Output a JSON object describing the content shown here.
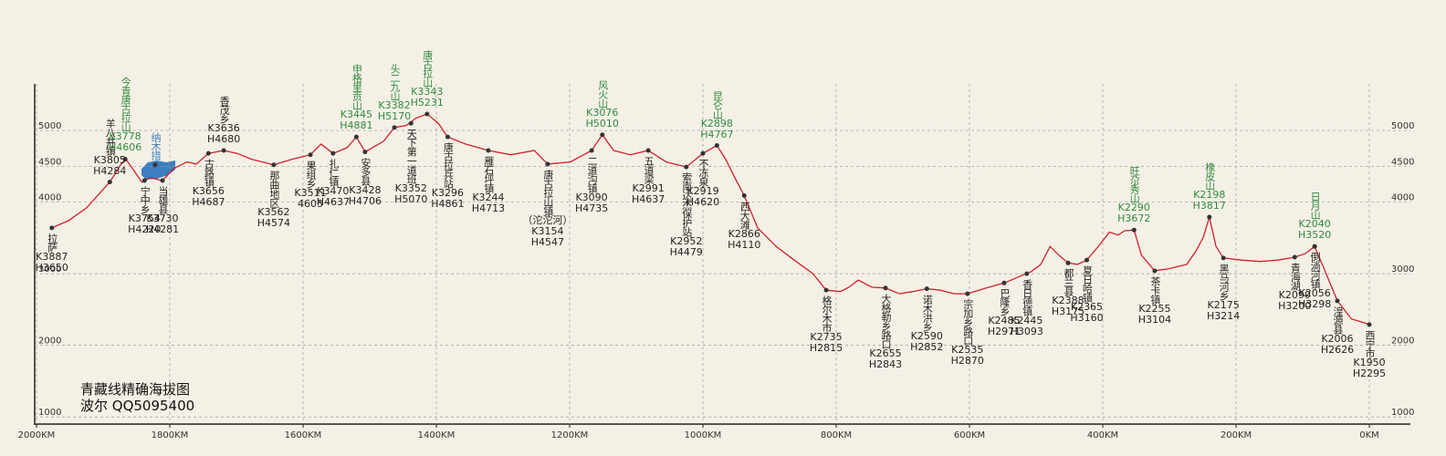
{
  "chart_data": {
    "type": "line",
    "title": "青藏线精确海拔图",
    "subtitle": "波尔 QQ5095400",
    "color": "#d0202a",
    "x": [
      1977,
      1952,
      1925,
      1890,
      1873,
      1866,
      1856,
      1842,
      1829,
      1811,
      1794,
      1774,
      1760,
      1742,
      1719,
      1699,
      1678,
      1644,
      1616,
      1589,
      1573,
      1555,
      1534,
      1520,
      1507,
      1479,
      1463,
      1445,
      1431,
      1414,
      1397,
      1383,
      1356,
      1322,
      1288,
      1253,
      1233,
      1199,
      1167,
      1151,
      1134,
      1109,
      1082,
      1055,
      1025,
      1000,
      979,
      966,
      952,
      938,
      918,
      890,
      863,
      835,
      815,
      794,
      781,
      767,
      746,
      726,
      705,
      685,
      664,
      644,
      623,
      603,
      575,
      548,
      520,
      507,
      493,
      479,
      466,
      452,
      438,
      424,
      404,
      390,
      377,
      367,
      353,
      342,
      322,
      301,
      274,
      260,
      249,
      240,
      230,
      219,
      192,
      164,
      137,
      112,
      96,
      82,
      68,
      48,
      27,
      0
    ],
    "values": [
      3640,
      3740,
      3920,
      4280,
      4530,
      4600,
      4470,
      4280,
      4340,
      4300,
      4470,
      4560,
      4530,
      4680,
      4720,
      4680,
      4600,
      4520,
      4600,
      4660,
      4810,
      4680,
      4760,
      4910,
      4700,
      4850,
      5040,
      5070,
      5170,
      5230,
      5100,
      4910,
      4810,
      4720,
      4660,
      4720,
      4530,
      4560,
      4720,
      4940,
      4720,
      4660,
      4720,
      4560,
      4490,
      4680,
      4790,
      4600,
      4340,
      4090,
      3640,
      3380,
      3190,
      3000,
      2770,
      2750,
      2810,
      2910,
      2810,
      2800,
      2720,
      2750,
      2790,
      2770,
      2720,
      2720,
      2800,
      2870,
      2980,
      3030,
      3130,
      3380,
      3260,
      3150,
      3130,
      3190,
      3410,
      3580,
      3540,
      3600,
      3610,
      3260,
      3040,
      3070,
      3130,
      3320,
      3510,
      3790,
      3380,
      3220,
      3190,
      3170,
      3190,
      3230,
      3280,
      3380,
      3070,
      2620,
      2370,
      2290
    ],
    "xlim": [
      2000,
      0
    ],
    "xticks": [
      {
        "value": 2000,
        "label": "2000KM"
      },
      {
        "value": 1800,
        "label": "1800KM"
      },
      {
        "value": 1600,
        "label": "1600KM"
      },
      {
        "value": 1400,
        "label": "1400KM"
      },
      {
        "value": 1200,
        "label": "1200KM"
      },
      {
        "value": 1000,
        "label": "1000KM"
      },
      {
        "value": 800,
        "label": "800KM"
      },
      {
        "value": 600,
        "label": "600KM"
      },
      {
        "value": 400,
        "label": "400KM"
      },
      {
        "value": 200,
        "label": "200KM"
      },
      {
        "value": 0,
        "label": "0KM"
      }
    ],
    "ylim": [
      900,
      5650
    ],
    "yticks": [
      1000,
      2000,
      3000,
      4000,
      4500,
      5000
    ],
    "grid": true,
    "annotations": [
      {
        "name": "拉萨",
        "code": "K3887",
        "height": "H3650",
        "x": 1977,
        "y": 3640,
        "color": "#222222",
        "side": "below"
      },
      {
        "name": "羊八井镇",
        "code": "K3805",
        "height": "H4284",
        "x": 1890,
        "y": 4280,
        "color": "#222222",
        "side": "above"
      },
      {
        "name": "今青唐古拉山",
        "code": "K3778",
        "height": "H4606",
        "x": 1867,
        "y": 4600,
        "color": "#2e8b3e",
        "side": "above"
      },
      {
        "name": "纳木措",
        "x": 1822,
        "y": 4520,
        "color": "#3b7fc0",
        "side": "above"
      },
      {
        "name": "宁中乡",
        "code": "K3754",
        "height": "H4220",
        "x": 1838,
        "y": 4300,
        "color": "#222222",
        "side": "below"
      },
      {
        "name": "当雄县",
        "code": "K3730",
        "height": "H4281",
        "x": 1811,
        "y": 4300,
        "color": "#222222",
        "side": "below"
      },
      {
        "name": "古路镇",
        "code": "K3656",
        "height": "H4687",
        "x": 1742,
        "y": 4680,
        "color": "#222222",
        "side": "below"
      },
      {
        "name": "香茂乡",
        "code": "K3636",
        "height": "H4680",
        "x": 1719,
        "y": 4720,
        "color": "#222222",
        "side": "above"
      },
      {
        "name": "那曲地区",
        "code": "K3562",
        "height": "H4574",
        "x": 1644,
        "y": 4520,
        "color": "#222222",
        "side": "below"
      },
      {
        "name": "果组乡",
        "code": "K3511",
        "height": "4605",
        "x": 1589,
        "y": 4660,
        "color": "#222222",
        "side": "below"
      },
      {
        "name": "扎仁镇",
        "code": "K3470",
        "height": "H4637",
        "x": 1555,
        "y": 4680,
        "color": "#222222",
        "side": "below"
      },
      {
        "name": "申格里贡山",
        "code": "K3445",
        "height": "H4881",
        "x": 1520,
        "y": 4910,
        "color": "#2e8b3e",
        "side": "above"
      },
      {
        "name": "安多县",
        "code": "K3428",
        "height": "H4706",
        "x": 1507,
        "y": 4700,
        "color": "#222222",
        "side": "below"
      },
      {
        "name": "头二九山",
        "code": "K3382",
        "height": "H5170",
        "x": 1463,
        "y": 5040,
        "color": "#2e8b3e",
        "side": "above"
      },
      {
        "name": "天下第一道班",
        "code": "K3352",
        "height": "H5070",
        "x": 1438,
        "y": 5100,
        "color": "#222222",
        "side": "below"
      },
      {
        "name": "唐古拉山",
        "code": "K3343",
        "height": "H5231",
        "x": 1414,
        "y": 5230,
        "color": "#2e8b3e",
        "side": "above"
      },
      {
        "name": "唐古拉兵站",
        "code": "K3296",
        "height": "H4861",
        "x": 1383,
        "y": 4910,
        "color": "#222222",
        "side": "below"
      },
      {
        "name": "雁石坪镇",
        "code": "K3244",
        "height": "H4713",
        "x": 1322,
        "y": 4720,
        "color": "#222222",
        "side": "below"
      },
      {
        "name": "唐古拉山镇",
        "note": "（沱沱河）",
        "code": "K3154",
        "height": "H4547",
        "x": 1233,
        "y": 4530,
        "color": "#222222",
        "side": "below"
      },
      {
        "name": "风火山",
        "code": "K3076",
        "height": "H5010",
        "x": 1151,
        "y": 4940,
        "color": "#2e8b3e",
        "side": "above"
      },
      {
        "name": "二道沟镇",
        "code": "K3090",
        "height": "H4735",
        "x": 1167,
        "y": 4720,
        "color": "#222222",
        "side": "below"
      },
      {
        "name": "五道梁",
        "code": "K2991",
        "height": "H4637",
        "x": 1082,
        "y": 4720,
        "color": "#222222",
        "side": "below"
      },
      {
        "name": "索南达杰保护站",
        "code": "K2952",
        "height": "H4479",
        "x": 1025,
        "y": 4490,
        "color": "#222222",
        "side": "below"
      },
      {
        "name": "不冻泉",
        "code": "K2919",
        "height": "H4620",
        "x": 1000,
        "y": 4680,
        "color": "#222222",
        "side": "below"
      },
      {
        "name": "昆仑山",
        "code": "K2898",
        "height": "H4767",
        "x": 979,
        "y": 4790,
        "color": "#2e8b3e",
        "side": "above"
      },
      {
        "name": "西大滩",
        "code": "K2866",
        "height": "H4110",
        "x": 938,
        "y": 4090,
        "color": "#222222",
        "side": "below"
      },
      {
        "name": "格尔木市",
        "code": "K2735",
        "height": "H2815",
        "x": 815,
        "y": 2770,
        "color": "#222222",
        "side": "below"
      },
      {
        "name": "大格勒乡路口",
        "code": "K2655",
        "height": "H2843",
        "x": 726,
        "y": 2800,
        "color": "#222222",
        "side": "below"
      },
      {
        "name": "诺木洪乡",
        "code": "K2590",
        "height": "H2852",
        "x": 664,
        "y": 2790,
        "color": "#222222",
        "side": "below"
      },
      {
        "name": "宗加乡路口",
        "code": "K2535",
        "height": "H2870",
        "x": 603,
        "y": 2720,
        "color": "#222222",
        "side": "below"
      },
      {
        "name": "巴隆乡",
        "code": "K2485",
        "height": "H2971",
        "x": 548,
        "y": 2870,
        "color": "#222222",
        "side": "below"
      },
      {
        "name": "香日德镇",
        "code": "K2445",
        "height": "H3093",
        "x": 514,
        "y": 3000,
        "color": "#222222",
        "side": "below"
      },
      {
        "name": "都兰县",
        "code": "K2388",
        "height": "H3175",
        "x": 452,
        "y": 3150,
        "color": "#222222",
        "side": "below"
      },
      {
        "name": "夏日哈镇",
        "code": "K2365",
        "height": "H3160",
        "x": 424,
        "y": 3190,
        "color": "#222222",
        "side": "below"
      },
      {
        "name": "旺尕秀山",
        "code": "K2290",
        "height": "H3672",
        "x": 353,
        "y": 3610,
        "color": "#2e8b3e",
        "side": "above"
      },
      {
        "name": "茶卡镇",
        "code": "K2255",
        "height": "H3104",
        "x": 322,
        "y": 3040,
        "color": "#222222",
        "side": "below"
      },
      {
        "name": "橡皮山",
        "code": "K2198",
        "height": "H3817",
        "x": 240,
        "y": 3790,
        "color": "#2e8b3e",
        "side": "above"
      },
      {
        "name": "黑马河乡",
        "code": "K2175",
        "height": "H3214",
        "x": 219,
        "y": 3220,
        "color": "#222222",
        "side": "below"
      },
      {
        "name": "青海湖",
        "code": "K2090",
        "height": "H3200",
        "x": 112,
        "y": 3230,
        "color": "#222222",
        "side": "below"
      },
      {
        "name": "倒淌河镇",
        "code": "K2056",
        "height": "H3298",
        "x": 82,
        "y": 3380,
        "color": "#222222",
        "side": "below"
      },
      {
        "name": "日月山",
        "code": "K2040",
        "height": "H3520",
        "x": 82,
        "y": 3380,
        "color": "#2e8b3e",
        "side": "above"
      },
      {
        "name": "湟源县",
        "code": "K2006",
        "height": "H2626",
        "x": 48,
        "y": 2620,
        "color": "#222222",
        "side": "below"
      },
      {
        "name": "西宁市",
        "code": "K1950",
        "height": "H2295",
        "x": 0,
        "y": 2290,
        "color": "#222222",
        "side": "below"
      }
    ]
  }
}
